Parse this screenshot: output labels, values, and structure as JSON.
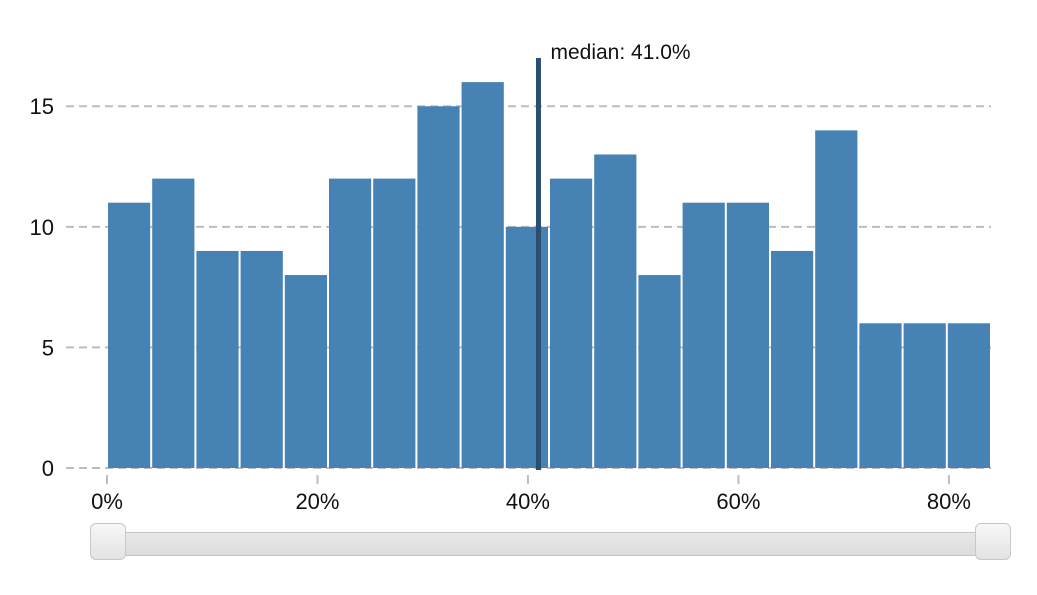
{
  "chart_data": {
    "type": "bar",
    "subtype": "histogram",
    "bin_width": 4.2,
    "x_start": 0,
    "values": [
      11,
      12,
      9,
      9,
      8,
      12,
      12,
      15,
      16,
      10,
      12,
      13,
      8,
      11,
      11,
      9,
      14,
      6,
      6,
      6
    ],
    "xlim": [
      0,
      84
    ],
    "ylim": [
      0,
      17
    ],
    "x_ticks": [
      0,
      20,
      40,
      60,
      80
    ],
    "x_tick_labels": [
      "0%",
      "20%",
      "40%",
      "60%",
      "80%"
    ],
    "y_ticks": [
      0,
      5,
      10,
      15
    ],
    "y_tick_labels": [
      "0",
      "5",
      "10",
      "15"
    ],
    "grid": "horizontal dashed",
    "median": {
      "value": 41.0,
      "label": "median: 41.0%"
    },
    "colors": {
      "bar": "#4682b4",
      "median_line": "#2c4e6e",
      "grid": "#bdbdbd"
    }
  },
  "slider": {
    "range": [
      0,
      84
    ]
  }
}
